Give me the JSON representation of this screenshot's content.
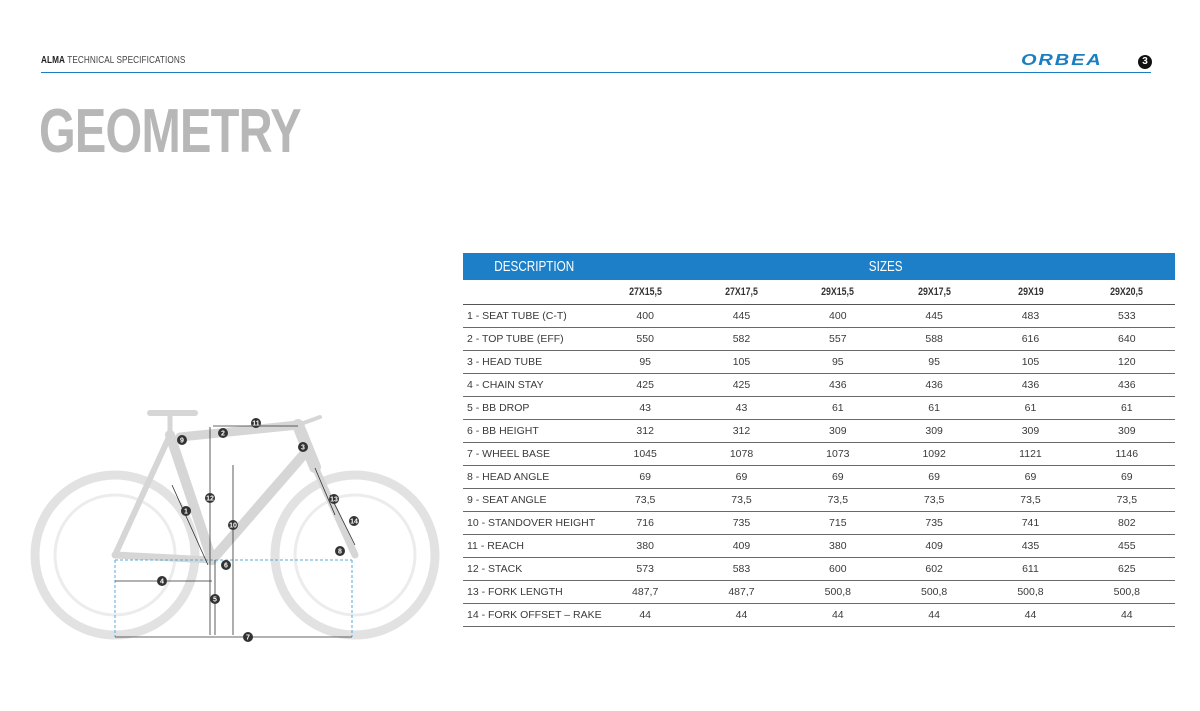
{
  "header": {
    "model": "ALMA",
    "section": "TECHNICAL SPECIFICATIONS",
    "brand": "ORBEA",
    "page": "3",
    "accent_color": "#1a7fc1"
  },
  "page_title": "GEOMETRY",
  "diagram": {
    "icon": "bike-geometry-diagram",
    "markers": [
      "1",
      "2",
      "3",
      "4",
      "5",
      "6",
      "7",
      "8",
      "9",
      "10",
      "11",
      "12",
      "13",
      "14"
    ]
  },
  "table": {
    "header_color": "#1c7fc7",
    "description_header": "DESCRIPTION",
    "sizes_header": "SIZES",
    "sizes": [
      "27X15,5",
      "27X17,5",
      "29X15,5",
      "29X17,5",
      "29X19",
      "29X20,5"
    ],
    "rows": [
      {
        "label": "1 - SEAT TUBE (C-T)",
        "values": [
          "400",
          "445",
          "400",
          "445",
          "483",
          "533"
        ]
      },
      {
        "label": "2 - TOP TUBE (EFF)",
        "values": [
          "550",
          "582",
          "557",
          "588",
          "616",
          "640"
        ]
      },
      {
        "label": "3 - HEAD TUBE",
        "values": [
          "95",
          "105",
          "95",
          "95",
          "105",
          "120"
        ]
      },
      {
        "label": "4 - CHAIN STAY",
        "values": [
          "425",
          "425",
          "436",
          "436",
          "436",
          "436"
        ]
      },
      {
        "label": "5 - BB DROP",
        "values": [
          "43",
          "43",
          "61",
          "61",
          "61",
          "61"
        ]
      },
      {
        "label": "6 - BB HEIGHT",
        "values": [
          "312",
          "312",
          "309",
          "309",
          "309",
          "309"
        ]
      },
      {
        "label": "7 - WHEEL BASE",
        "values": [
          "1045",
          "1078",
          "1073",
          "1092",
          "1121",
          "1146"
        ]
      },
      {
        "label": "8 - HEAD ANGLE",
        "values": [
          "69",
          "69",
          "69",
          "69",
          "69",
          "69"
        ]
      },
      {
        "label": "9 - SEAT ANGLE",
        "values": [
          "73,5",
          "73,5",
          "73,5",
          "73,5",
          "73,5",
          "73,5"
        ]
      },
      {
        "label": "10 - STANDOVER HEIGHT",
        "values": [
          "716",
          "735",
          "715",
          "735",
          "741",
          "802"
        ]
      },
      {
        "label": "11 - REACH",
        "values": [
          "380",
          "409",
          "380",
          "409",
          "435",
          "455"
        ]
      },
      {
        "label": "12 - STACK",
        "values": [
          "573",
          "583",
          "600",
          "602",
          "611",
          "625"
        ]
      },
      {
        "label": "13 - FORK LENGTH",
        "values": [
          "487,7",
          "487,7",
          "500,8",
          "500,8",
          "500,8",
          "500,8"
        ]
      },
      {
        "label": "14 - FORK OFFSET – RAKE",
        "values": [
          "44",
          "44",
          "44",
          "44",
          "44",
          "44"
        ]
      }
    ]
  }
}
